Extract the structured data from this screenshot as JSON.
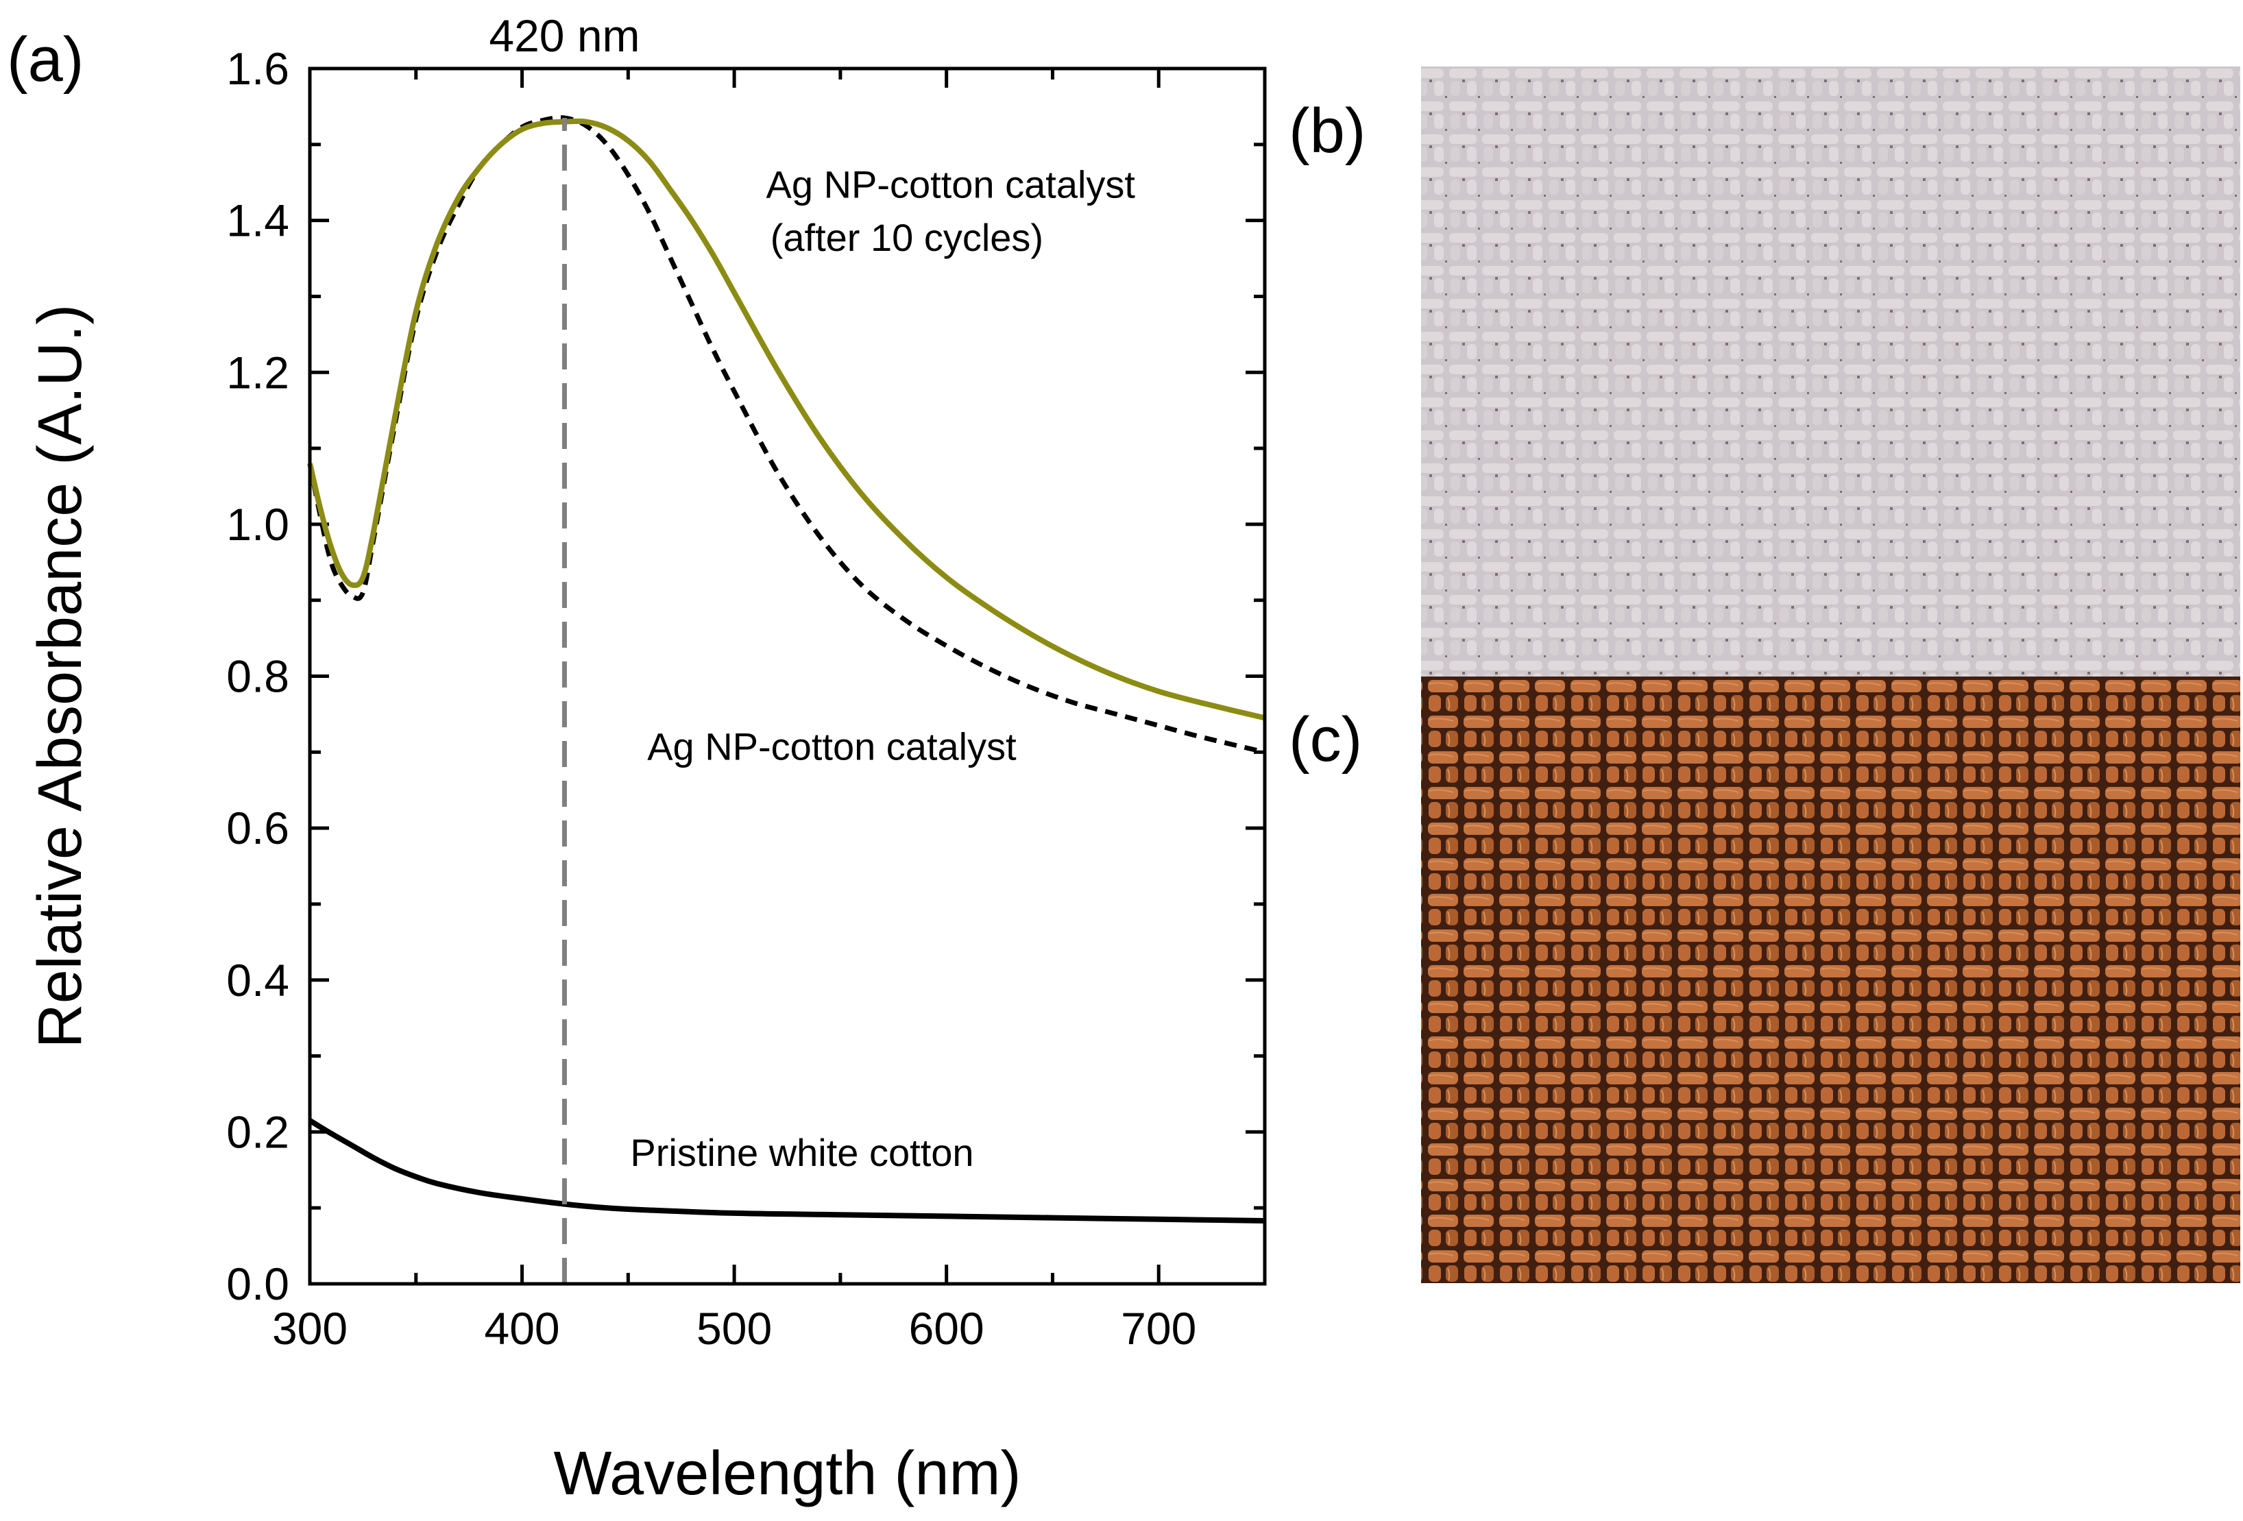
{
  "panels": {
    "a_label": "(a)",
    "b_label": "(b)",
    "c_label": "(c)"
  },
  "images": {
    "b": {
      "description_name": "pristine-white-cotton-fabric",
      "base_color": "#c9c2c7",
      "thread_color": "#ddd6da",
      "gap_color": "#6e6467"
    },
    "c": {
      "description_name": "ag-np-cotton-fabric",
      "base_color": "#b0602f",
      "thread_color": "#cf7a44",
      "gap_color": "#3a1c10"
    }
  },
  "chart_data": {
    "type": "line",
    "title": "",
    "xlabel": "Wavelength (nm)",
    "ylabel": "Relative Absorbance (A.U.)",
    "xlim": [
      300,
      750
    ],
    "ylim": [
      0.0,
      1.6
    ],
    "xticks": [
      300,
      400,
      500,
      600,
      700
    ],
    "xtick_labels": [
      "300",
      "400",
      "500",
      "600",
      "700"
    ],
    "yticks": [
      0.0,
      0.2,
      0.4,
      0.6,
      0.8,
      1.0,
      1.2,
      1.4,
      1.6
    ],
    "ytick_labels": [
      "0.0",
      "0.2",
      "0.4",
      "0.6",
      "0.8",
      "1.0",
      "1.2",
      "1.4",
      "1.6"
    ],
    "reference_line": {
      "x": 420,
      "label": "420 nm",
      "color": "#808080"
    },
    "series": [
      {
        "name": "Ag NP-cotton catalyst (after 10 cycles)",
        "color": "#8c8c14",
        "style": "solid",
        "x": [
          300,
          305,
          310,
          315,
          320,
          325,
          330,
          340,
          350,
          360,
          370,
          380,
          390,
          400,
          410,
          420,
          430,
          440,
          450,
          460,
          470,
          480,
          490,
          500,
          520,
          540,
          560,
          580,
          600,
          620,
          640,
          660,
          680,
          700,
          720,
          750
        ],
        "y": [
          1.08,
          1.02,
          0.97,
          0.935,
          0.92,
          0.93,
          0.99,
          1.14,
          1.28,
          1.37,
          1.43,
          1.47,
          1.5,
          1.52,
          1.528,
          1.53,
          1.53,
          1.522,
          1.505,
          1.478,
          1.44,
          1.4,
          1.355,
          1.305,
          1.205,
          1.115,
          1.04,
          0.98,
          0.93,
          0.89,
          0.855,
          0.825,
          0.8,
          0.78,
          0.765,
          0.745
        ]
      },
      {
        "name": "Ag NP-cotton catalyst",
        "color": "#000000",
        "style": "dashed",
        "x": [
          300,
          305,
          310,
          315,
          320,
          325,
          330,
          340,
          350,
          360,
          370,
          380,
          390,
          400,
          410,
          420,
          430,
          440,
          450,
          460,
          470,
          480,
          490,
          500,
          520,
          540,
          560,
          580,
          600,
          620,
          640,
          660,
          680,
          700,
          720,
          750
        ],
        "y": [
          1.08,
          1.01,
          0.95,
          0.92,
          0.905,
          0.91,
          0.98,
          1.13,
          1.27,
          1.36,
          1.42,
          1.47,
          1.5,
          1.523,
          1.532,
          1.535,
          1.525,
          1.5,
          1.46,
          1.41,
          1.35,
          1.29,
          1.23,
          1.175,
          1.07,
          0.985,
          0.92,
          0.875,
          0.84,
          0.81,
          0.785,
          0.765,
          0.75,
          0.735,
          0.72,
          0.7
        ]
      },
      {
        "name": "Pristine white cotton",
        "color": "#000000",
        "style": "solid",
        "x": [
          300,
          310,
          320,
          330,
          340,
          350,
          360,
          380,
          400,
          420,
          440,
          460,
          500,
          550,
          600,
          650,
          700,
          750
        ],
        "y": [
          0.215,
          0.198,
          0.182,
          0.166,
          0.152,
          0.141,
          0.132,
          0.12,
          0.112,
          0.105,
          0.1,
          0.097,
          0.093,
          0.091,
          0.089,
          0.087,
          0.085,
          0.083
        ]
      }
    ],
    "annotations": [
      {
        "text": "Ag NP-cotton catalyst",
        "series": 0
      },
      {
        "text": "(after 10 cycles)",
        "series": 0
      },
      {
        "text": "Ag NP-cotton catalyst",
        "series": 1
      },
      {
        "text": "Pristine white cotton",
        "series": 2
      }
    ]
  }
}
